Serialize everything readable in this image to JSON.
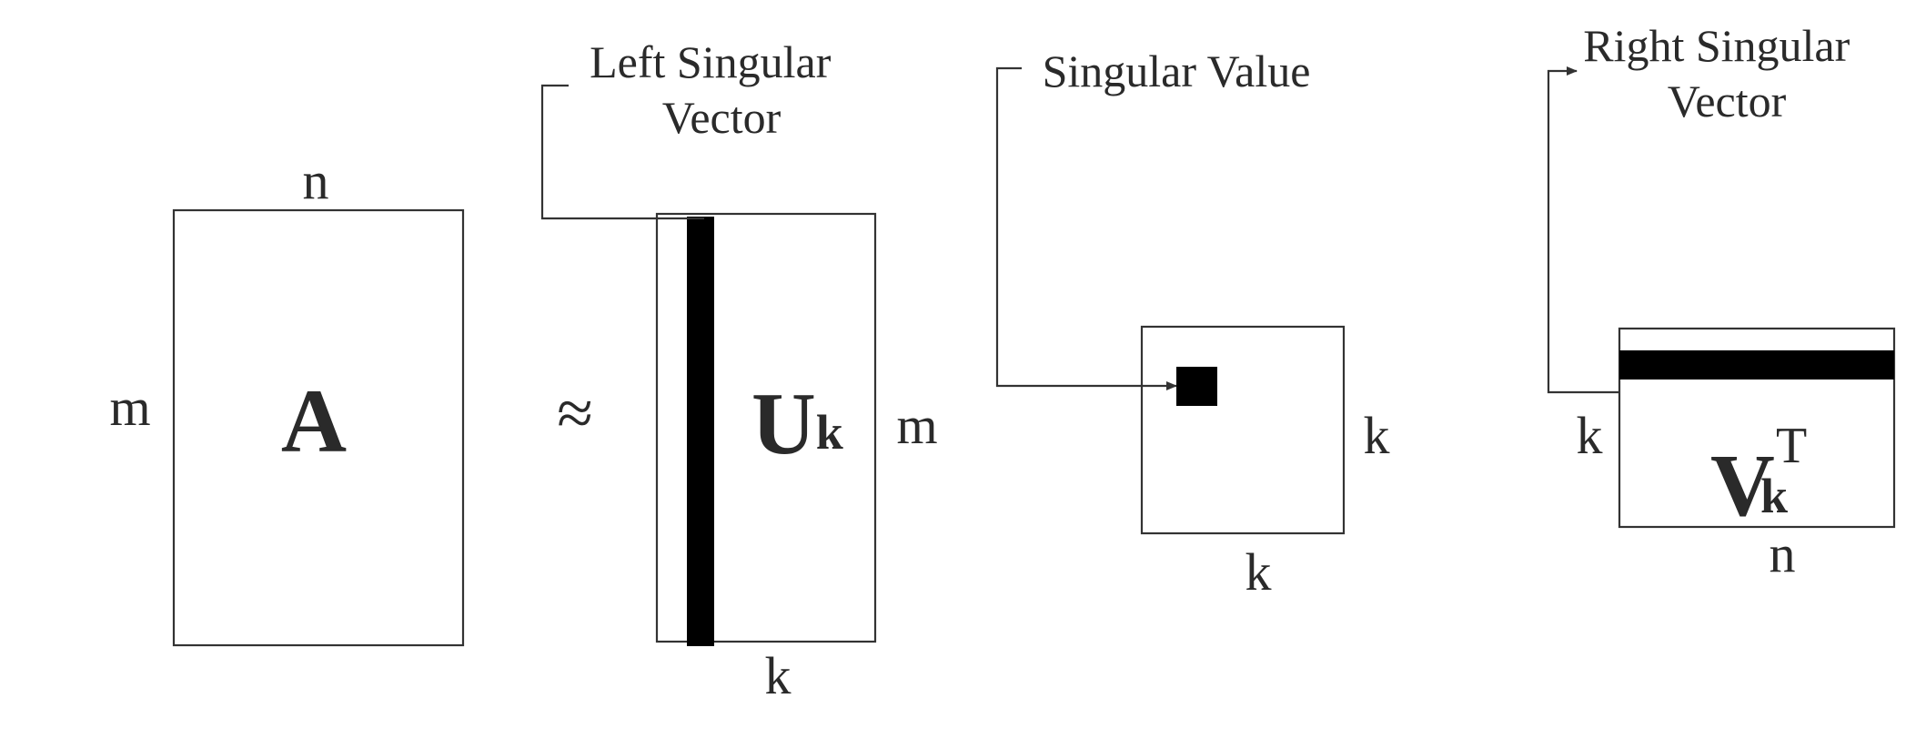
{
  "diagram": {
    "approx_symbol": "≈",
    "matrix_a": {
      "label": "A",
      "rows_label": "m",
      "cols_label": "n"
    },
    "matrix_u": {
      "base": "U",
      "subscript": "k",
      "rows_label": "m",
      "cols_label": "k"
    },
    "matrix_sigma": {
      "rows_label": "k",
      "cols_label": "k"
    },
    "matrix_v": {
      "base": "V",
      "subscript": "k",
      "superscript": "T",
      "rows_label": "k",
      "cols_label": "n"
    },
    "callouts": {
      "left_singular_vector": [
        "Left Singular",
        "Vector"
      ],
      "singular_value": "Singular Value",
      "right_singular_vector": [
        "Right Singular",
        "Vector"
      ]
    },
    "colors": {
      "line": "#333333",
      "fill": "#000000",
      "text": "#2a2a2a"
    }
  }
}
